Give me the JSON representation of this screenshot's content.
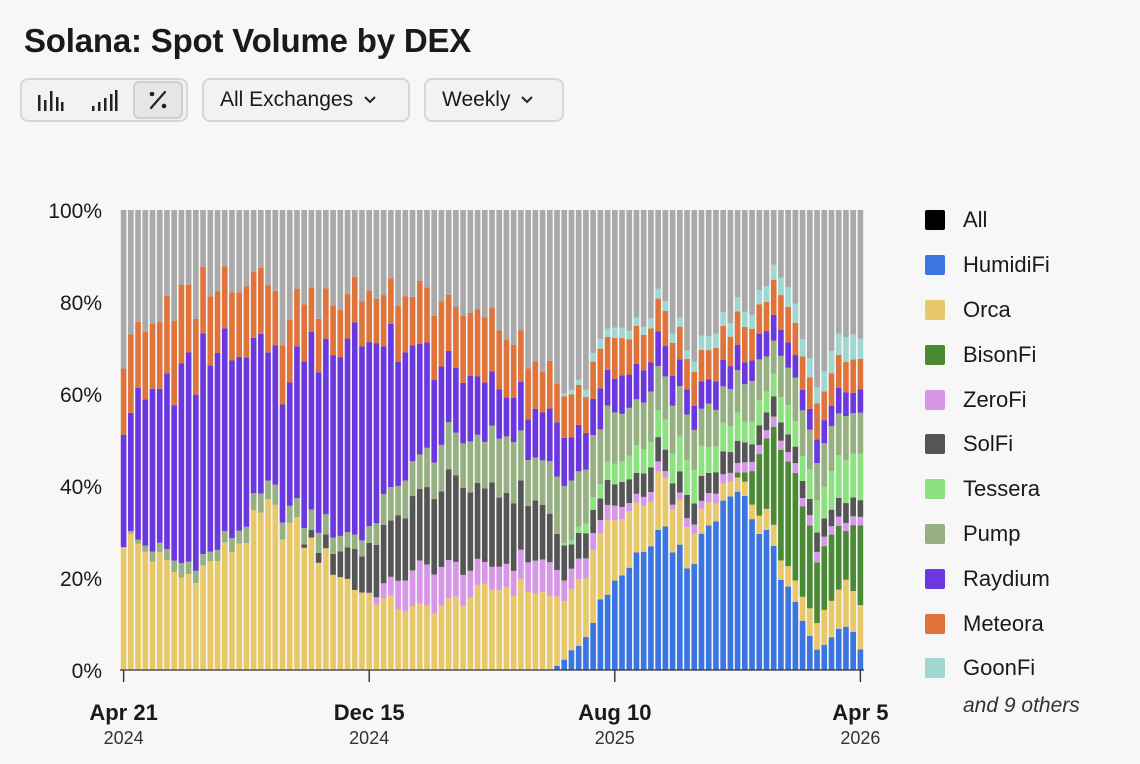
{
  "title": "Solana: Spot Volume by DEX",
  "toolbar": {
    "view_buttons": [
      {
        "icon": "bar-chart-icon",
        "active": false
      },
      {
        "icon": "signal-bars-icon",
        "active": false
      },
      {
        "icon": "percent-icon",
        "active": true
      }
    ],
    "exchange_select": "All Exchanges",
    "period_select": "Weekly"
  },
  "legend": {
    "items": [
      {
        "label": "All",
        "color": "#000000"
      },
      {
        "label": "HumidiFi",
        "color": "#3a75e2"
      },
      {
        "label": "Orca",
        "color": "#e9c86a"
      },
      {
        "label": "BisonFi",
        "color": "#4b8a35"
      },
      {
        "label": "ZeroFi",
        "color": "#d896e8"
      },
      {
        "label": "SolFi",
        "color": "#555555"
      },
      {
        "label": "Tessera",
        "color": "#8be27f"
      },
      {
        "label": "Pump",
        "color": "#97b081"
      },
      {
        "label": "Raydium",
        "color": "#6b38e0"
      },
      {
        "label": "Meteora",
        "color": "#e0733a"
      },
      {
        "label": "GoonFi",
        "color": "#9fd8d0"
      }
    ],
    "more": "and 9 others"
  },
  "chart_data": {
    "type": "bar",
    "stacked": true,
    "normalized": true,
    "ylim": [
      0,
      100
    ],
    "y_ticks": [
      "0%",
      "20%",
      "40%",
      "60%",
      "80%",
      "100%"
    ],
    "x_ticks": [
      {
        "label": "Apr 21",
        "year": "2024",
        "week": 0
      },
      {
        "label": "Dec 15",
        "year": "2024",
        "week": 34
      },
      {
        "label": "Aug 10",
        "year": "2025",
        "week": 68
      },
      {
        "label": "Apr 5",
        "year": "2026",
        "week": 102
      }
    ],
    "weeks": 103,
    "series": [
      {
        "name": "HumidiFi",
        "color": "#3a75e2",
        "keypoints": [
          [
            0,
            0
          ],
          [
            59,
            0
          ],
          [
            60,
            1
          ],
          [
            62,
            4
          ],
          [
            64,
            8
          ],
          [
            66,
            15
          ],
          [
            68,
            20
          ],
          [
            70,
            23
          ],
          [
            72,
            28
          ],
          [
            74,
            33
          ],
          [
            76,
            28
          ],
          [
            78,
            24
          ],
          [
            80,
            28
          ],
          [
            82,
            36
          ],
          [
            84,
            42
          ],
          [
            86,
            38
          ],
          [
            88,
            30
          ],
          [
            90,
            25
          ],
          [
            92,
            18
          ],
          [
            94,
            10
          ],
          [
            96,
            4
          ],
          [
            98,
            8
          ],
          [
            100,
            10
          ],
          [
            102,
            5
          ]
        ]
      },
      {
        "name": "Orca",
        "color": "#e9c86a",
        "keypoints": [
          [
            0,
            29
          ],
          [
            4,
            25
          ],
          [
            8,
            20
          ],
          [
            12,
            23
          ],
          [
            16,
            28
          ],
          [
            20,
            34
          ],
          [
            24,
            30
          ],
          [
            28,
            24
          ],
          [
            32,
            18
          ],
          [
            36,
            15
          ],
          [
            40,
            13
          ],
          [
            44,
            14
          ],
          [
            48,
            16
          ],
          [
            52,
            18
          ],
          [
            56,
            18
          ],
          [
            60,
            15
          ],
          [
            62,
            12
          ],
          [
            64,
            14
          ],
          [
            66,
            16
          ],
          [
            68,
            13
          ],
          [
            70,
            12
          ],
          [
            72,
            10
          ],
          [
            74,
            12
          ],
          [
            76,
            10
          ],
          [
            78,
            8
          ],
          [
            80,
            6
          ],
          [
            82,
            4
          ],
          [
            84,
            3
          ],
          [
            86,
            3
          ],
          [
            88,
            4
          ],
          [
            90,
            5
          ],
          [
            92,
            4
          ],
          [
            94,
            5
          ],
          [
            96,
            6
          ],
          [
            98,
            8
          ],
          [
            100,
            10
          ],
          [
            102,
            10
          ]
        ]
      },
      {
        "name": "BisonFi",
        "color": "#4b8a35",
        "keypoints": [
          [
            0,
            0
          ],
          [
            84,
            0
          ],
          [
            86,
            2
          ],
          [
            88,
            12
          ],
          [
            90,
            20
          ],
          [
            92,
            25
          ],
          [
            94,
            20
          ],
          [
            96,
            15
          ],
          [
            98,
            13
          ],
          [
            100,
            12
          ],
          [
            102,
            18
          ]
        ]
      },
      {
        "name": "ZeroFi",
        "color": "#d896e8",
        "keypoints": [
          [
            0,
            0
          ],
          [
            34,
            0
          ],
          [
            36,
            3
          ],
          [
            38,
            6
          ],
          [
            40,
            8
          ],
          [
            42,
            10
          ],
          [
            44,
            9
          ],
          [
            46,
            8
          ],
          [
            48,
            6
          ],
          [
            50,
            5
          ],
          [
            52,
            5
          ],
          [
            54,
            5
          ],
          [
            56,
            7
          ],
          [
            58,
            7
          ],
          [
            60,
            6
          ],
          [
            62,
            4
          ],
          [
            64,
            4
          ],
          [
            66,
            3
          ],
          [
            68,
            3
          ],
          [
            70,
            2
          ],
          [
            72,
            2
          ],
          [
            74,
            2
          ],
          [
            76,
            1
          ],
          [
            78,
            2
          ],
          [
            80,
            2
          ],
          [
            82,
            2
          ],
          [
            84,
            2
          ],
          [
            86,
            2
          ],
          [
            88,
            2
          ],
          [
            90,
            2
          ],
          [
            92,
            2
          ],
          [
            94,
            2
          ],
          [
            96,
            2
          ],
          [
            98,
            2
          ],
          [
            100,
            2
          ],
          [
            102,
            2
          ]
        ]
      },
      {
        "name": "SolFi",
        "color": "#555555",
        "keypoints": [
          [
            0,
            0
          ],
          [
            24,
            0
          ],
          [
            28,
            3
          ],
          [
            30,
            6
          ],
          [
            32,
            8
          ],
          [
            34,
            10
          ],
          [
            36,
            12
          ],
          [
            38,
            14
          ],
          [
            40,
            15
          ],
          [
            44,
            18
          ],
          [
            48,
            18
          ],
          [
            52,
            17
          ],
          [
            56,
            14
          ],
          [
            58,
            11
          ],
          [
            60,
            8
          ],
          [
            62,
            6
          ],
          [
            64,
            5
          ],
          [
            66,
            5
          ],
          [
            68,
            5
          ],
          [
            70,
            5
          ],
          [
            72,
            5
          ],
          [
            74,
            5
          ],
          [
            76,
            5
          ],
          [
            78,
            5
          ],
          [
            80,
            5
          ],
          [
            82,
            5
          ],
          [
            84,
            5
          ],
          [
            86,
            4
          ],
          [
            88,
            4
          ],
          [
            90,
            4
          ],
          [
            92,
            4
          ],
          [
            94,
            4
          ],
          [
            96,
            4
          ],
          [
            98,
            4
          ],
          [
            100,
            4
          ],
          [
            102,
            4
          ]
        ]
      },
      {
        "name": "Tessera",
        "color": "#8be27f",
        "keypoints": [
          [
            0,
            0
          ],
          [
            60,
            0
          ],
          [
            62,
            1
          ],
          [
            64,
            2
          ],
          [
            66,
            3
          ],
          [
            68,
            4
          ],
          [
            70,
            5
          ],
          [
            72,
            6
          ],
          [
            74,
            6
          ],
          [
            76,
            7
          ],
          [
            78,
            7
          ],
          [
            80,
            6
          ],
          [
            82,
            6
          ],
          [
            84,
            6
          ],
          [
            86,
            5
          ],
          [
            88,
            5
          ],
          [
            90,
            5
          ],
          [
            92,
            6
          ],
          [
            94,
            6
          ],
          [
            96,
            7
          ],
          [
            98,
            8
          ],
          [
            100,
            9
          ],
          [
            102,
            10
          ]
        ]
      },
      {
        "name": "Pump",
        "color": "#97b081",
        "keypoints": [
          [
            0,
            0
          ],
          [
            4,
            2
          ],
          [
            8,
            3
          ],
          [
            12,
            2
          ],
          [
            16,
            3
          ],
          [
            20,
            4
          ],
          [
            24,
            4
          ],
          [
            28,
            4
          ],
          [
            32,
            3
          ],
          [
            34,
            4
          ],
          [
            36,
            6
          ],
          [
            38,
            7
          ],
          [
            40,
            8
          ],
          [
            42,
            8
          ],
          [
            44,
            9
          ],
          [
            46,
            10
          ],
          [
            48,
            10
          ],
          [
            50,
            11
          ],
          [
            52,
            12
          ],
          [
            54,
            12
          ],
          [
            56,
            10
          ],
          [
            58,
            10
          ],
          [
            60,
            12
          ],
          [
            62,
            12
          ],
          [
            64,
            13
          ],
          [
            66,
            12
          ],
          [
            68,
            11
          ],
          [
            70,
            11
          ],
          [
            72,
            10
          ],
          [
            74,
            10
          ],
          [
            76,
            10
          ],
          [
            78,
            10
          ],
          [
            80,
            9
          ],
          [
            82,
            9
          ],
          [
            84,
            9
          ],
          [
            86,
            8
          ],
          [
            88,
            8
          ],
          [
            90,
            8
          ],
          [
            92,
            8
          ],
          [
            94,
            9
          ],
          [
            96,
            9
          ],
          [
            98,
            9
          ],
          [
            100,
            9
          ],
          [
            102,
            10
          ]
        ]
      },
      {
        "name": "Raydium",
        "color": "#6b38e0",
        "keypoints": [
          [
            0,
            27
          ],
          [
            2,
            30
          ],
          [
            4,
            33
          ],
          [
            6,
            36
          ],
          [
            8,
            40
          ],
          [
            10,
            42
          ],
          [
            12,
            45
          ],
          [
            14,
            40
          ],
          [
            16,
            36
          ],
          [
            18,
            32
          ],
          [
            20,
            30
          ],
          [
            22,
            28
          ],
          [
            24,
            32
          ],
          [
            26,
            36
          ],
          [
            28,
            40
          ],
          [
            30,
            44
          ],
          [
            32,
            46
          ],
          [
            34,
            40
          ],
          [
            36,
            34
          ],
          [
            38,
            30
          ],
          [
            40,
            26
          ],
          [
            42,
            22
          ],
          [
            44,
            18
          ],
          [
            46,
            16
          ],
          [
            48,
            14
          ],
          [
            50,
            12
          ],
          [
            52,
            10
          ],
          [
            54,
            9
          ],
          [
            56,
            10
          ],
          [
            58,
            10
          ],
          [
            60,
            12
          ],
          [
            62,
            10
          ],
          [
            64,
            9
          ],
          [
            66,
            8
          ],
          [
            68,
            8
          ],
          [
            70,
            7
          ],
          [
            72,
            7
          ],
          [
            74,
            7
          ],
          [
            76,
            7
          ],
          [
            78,
            6
          ],
          [
            80,
            6
          ],
          [
            82,
            6
          ],
          [
            84,
            5
          ],
          [
            86,
            5
          ],
          [
            88,
            5
          ],
          [
            90,
            5
          ],
          [
            92,
            5
          ],
          [
            94,
            5
          ],
          [
            96,
            5
          ],
          [
            98,
            5
          ],
          [
            100,
            5
          ],
          [
            102,
            5
          ]
        ]
      },
      {
        "name": "Meteora",
        "color": "#e0733a",
        "keypoints": [
          [
            0,
            15
          ],
          [
            4,
            16
          ],
          [
            8,
            17
          ],
          [
            12,
            15
          ],
          [
            16,
            14
          ],
          [
            20,
            13
          ],
          [
            24,
            12
          ],
          [
            28,
            10
          ],
          [
            32,
            10
          ],
          [
            36,
            11
          ],
          [
            40,
            12
          ],
          [
            44,
            13
          ],
          [
            48,
            14
          ],
          [
            52,
            12
          ],
          [
            56,
            11
          ],
          [
            60,
            9
          ],
          [
            64,
            8
          ],
          [
            68,
            8
          ],
          [
            72,
            8
          ],
          [
            76,
            8
          ],
          [
            80,
            7
          ],
          [
            84,
            7
          ],
          [
            88,
            7
          ],
          [
            92,
            7
          ],
          [
            96,
            7
          ],
          [
            100,
            7
          ],
          [
            102,
            7
          ]
        ]
      },
      {
        "name": "GoonFi",
        "color": "#9fd8d0",
        "keypoints": [
          [
            0,
            0
          ],
          [
            60,
            0
          ],
          [
            62,
            1
          ],
          [
            66,
            2
          ],
          [
            70,
            2
          ],
          [
            74,
            2
          ],
          [
            78,
            2
          ],
          [
            80,
            3
          ],
          [
            84,
            3
          ],
          [
            88,
            3
          ],
          [
            92,
            4
          ],
          [
            96,
            4
          ],
          [
            100,
            5
          ],
          [
            102,
            5
          ]
        ]
      }
    ]
  }
}
